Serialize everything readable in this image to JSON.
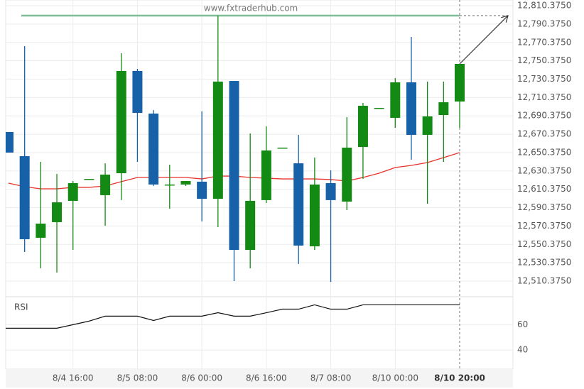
{
  "chart_data": {
    "type": "candlestick",
    "watermark": "www.fxtraderhub.com",
    "categories": [
      null,
      null,
      null,
      null,
      "8/4 16:00",
      null,
      null,
      null,
      "8/5 08:00",
      null,
      null,
      null,
      "8/6 00:00",
      null,
      null,
      null,
      "8/6 16:00",
      null,
      null,
      null,
      "8/7 08:00",
      null,
      null,
      null,
      "8/10 00:00",
      null,
      null,
      null,
      "8/10 20:00"
    ],
    "open": [
      12672.8,
      12646.5,
      12557.6,
      12574.6,
      12597.8,
      12621.7,
      12604.0,
      12627.9,
      12739.3,
      12692.9,
      12615.6,
      12615.6,
      12618.7,
      12600.1,
      12728.4,
      12544.4,
      12598.6,
      12655.8,
      12638.7,
      12548.3,
      12617.1,
      12597.0,
      12656.5,
      12699.1,
      12688.2,
      12726.9,
      12669.7,
      12691.3,
      12706.0
    ],
    "high": [
      12672.8,
      12766.3,
      12640.3,
      12627.2,
      12619.4,
      12621.7,
      12638.7,
      12758.6,
      12741.6,
      12696.7,
      12637.2,
      12619.4,
      12695.2,
      12799.6,
      12728.4,
      12671.2,
      12678.9,
      12655.8,
      12669.7,
      12645.0,
      12631.0,
      12689.0,
      12704.5,
      12699.1,
      12731.5,
      12776.4,
      12727.7,
      12727.7,
      12747.0
    ],
    "low": [
      12650.4,
      12542.1,
      12524.3,
      12519.7,
      12544.4,
      12621.0,
      12570.7,
      12598.6,
      12640.3,
      12614.0,
      12589.3,
      12614.0,
      12575.4,
      12569.2,
      12510.4,
      12524.3,
      12595.5,
      12655.1,
      12529.0,
      12544.4,
      12509.6,
      12587.7,
      12621.7,
      12698.4,
      12677.4,
      12642.6,
      12594.7,
      12640.3,
      12677.4
    ],
    "close": [
      12650.4,
      12556.0,
      12573.0,
      12596.2,
      12617.1,
      12621.7,
      12626.4,
      12739.3,
      12693.6,
      12615.6,
      12615.6,
      12619.4,
      12600.1,
      12727.7,
      12544.4,
      12597.8,
      12652.7,
      12655.8,
      12549.1,
      12615.6,
      12598.6,
      12655.8,
      12701.4,
      12699.1,
      12726.9,
      12669.7,
      12689.8,
      12705.2,
      12747.0
    ],
    "up_color": "#138a13",
    "down_color": "#1661a8",
    "ylim": [
      12495.7,
      12816.6
    ],
    "yticks": [
      {
        "value": 12810.375,
        "label": "12,810.3750"
      },
      {
        "value": 12790.375,
        "label": "12,790.3750"
      },
      {
        "value": 12770.375,
        "label": "12,770.3750"
      },
      {
        "value": 12750.375,
        "label": "12,750.3750"
      },
      {
        "value": 12730.375,
        "label": "12,730.3750"
      },
      {
        "value": 12710.375,
        "label": "12,710.3750"
      },
      {
        "value": 12690.375,
        "label": "12,690.3750"
      },
      {
        "value": 12670.375,
        "label": "12,670.3750"
      },
      {
        "value": 12650.375,
        "label": "12,650.3750"
      },
      {
        "value": 12630.375,
        "label": "12,630.3750"
      },
      {
        "value": 12610.375,
        "label": "12,610.3750"
      },
      {
        "value": 12590.375,
        "label": "12,590.3750"
      },
      {
        "value": 12570.375,
        "label": "12,570.3750"
      },
      {
        "value": 12550.375,
        "label": "12,550.3750"
      },
      {
        "value": 12530.375,
        "label": "12,530.3750"
      },
      {
        "value": 12510.375,
        "label": "12,510.3750"
      }
    ],
    "grid": true,
    "moving_average": {
      "color": "#e8322c",
      "values": [
        12617.1,
        12613.2,
        12610.9,
        12610.9,
        12612.5,
        12612.5,
        12614.0,
        12618.7,
        12623.3,
        12623.3,
        12623.3,
        12623.3,
        12621.7,
        12624.8,
        12624.8,
        12623.3,
        12622.5,
        12621.7,
        12621.7,
        12621.7,
        12621.0,
        12619.4,
        12623.3,
        12627.9,
        12634.1,
        12636.4,
        12639.5,
        12644.9,
        12650.4
      ]
    },
    "level": {
      "value": 12799.6,
      "color": "#7dbd98"
    },
    "rsi": {
      "label": "RSI",
      "color": "#111",
      "values": [
        57.2,
        57.2,
        57.2,
        57.2,
        60,
        62.8,
        66.7,
        66.7,
        66.7,
        63.3,
        66.7,
        66.7,
        66.7,
        69.4,
        66.7,
        66.7,
        69.4,
        72.2,
        72.2,
        75.6,
        72.2,
        72.2,
        75.6,
        75.6,
        75.6,
        75.6,
        75.6,
        75.6,
        75.6
      ],
      "ylim": [
        25,
        82
      ],
      "yticks": [
        60,
        40
      ]
    }
  }
}
